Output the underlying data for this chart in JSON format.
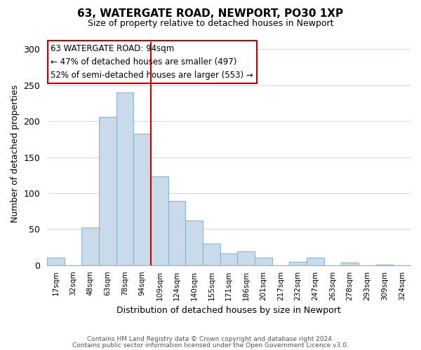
{
  "title1": "63, WATERGATE ROAD, NEWPORT, PO30 1XP",
  "title2": "Size of property relative to detached houses in Newport",
  "xlabel": "Distribution of detached houses by size in Newport",
  "ylabel": "Number of detached properties",
  "bar_labels": [
    "17sqm",
    "32sqm",
    "48sqm",
    "63sqm",
    "78sqm",
    "94sqm",
    "109sqm",
    "124sqm",
    "140sqm",
    "155sqm",
    "171sqm",
    "186sqm",
    "201sqm",
    "217sqm",
    "232sqm",
    "247sqm",
    "263sqm",
    "278sqm",
    "293sqm",
    "309sqm",
    "324sqm"
  ],
  "bar_values": [
    11,
    0,
    52,
    206,
    240,
    183,
    123,
    89,
    62,
    30,
    16,
    19,
    11,
    0,
    5,
    11,
    0,
    4,
    0,
    1,
    0
  ],
  "bar_color": "#c9daea",
  "bar_edge_color": "#8ab4cf",
  "vline_color": "#cc0000",
  "ylim": [
    0,
    310
  ],
  "yticks": [
    0,
    50,
    100,
    150,
    200,
    250,
    300
  ],
  "annotation_title": "63 WATERGATE ROAD: 94sqm",
  "annotation_line1": "← 47% of detached houses are smaller (497)",
  "annotation_line2": "52% of semi-detached houses are larger (553) →",
  "footer1": "Contains HM Land Registry data © Crown copyright and database right 2024.",
  "footer2": "Contains public sector information licensed under the Open Government Licence v3.0."
}
